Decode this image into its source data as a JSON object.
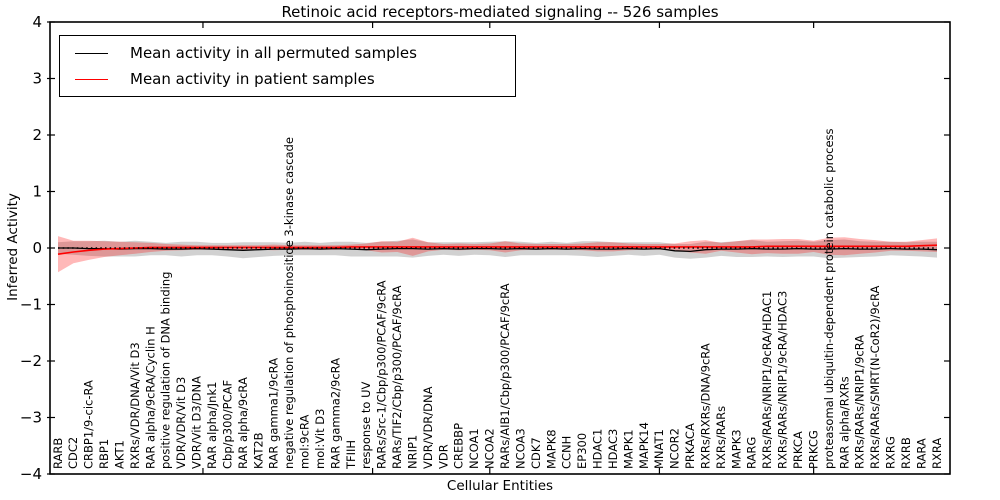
{
  "title": "Retinoic acid receptors-mediated signaling -- 526 samples",
  "legend": {
    "items": [
      {
        "label": "Mean activity in all permuted samples",
        "color": "#000000"
      },
      {
        "label": "Mean activity in patient samples",
        "color": "#ff0000"
      }
    ]
  },
  "chart_data": {
    "type": "line",
    "title": "Retinoic acid receptors-mediated signaling -- 526 samples",
    "xlabel": "Cellular Entities",
    "ylabel": "Inferred Activity",
    "ylim": [
      -4,
      4
    ],
    "yticks": [
      4,
      3,
      2,
      1,
      0,
      -1,
      -2,
      -3,
      -4
    ],
    "ytick_labels": [
      "4",
      "3",
      "2",
      "1",
      "0",
      "−1",
      "−2",
      "−3",
      "−4"
    ],
    "xtick_fractions": [
      9.4,
      20.4,
      28.0,
      39.0,
      49.0
    ],
    "grid": false,
    "legend_position": "upper left",
    "zero_line": {
      "style": "dotted",
      "color": "#000000"
    },
    "categories": [
      "RARB",
      "CDC2",
      "CRBP1/9-cic-RA",
      "RBP1",
      "AKT1",
      "RXRs/VDR/DNA/Vit D3",
      "RAR alpha/9cRA/Cyclin H",
      "positive regulation of DNA binding",
      "VDR/VDR/Vit D3",
      "VDR/Vit D3/DNA",
      "RAR alpha/Jnk1",
      "Cbp/p300/PCAF",
      "RAR alpha/9cRA",
      "KAT2B",
      "RAR gamma1/9cRA",
      "negative regulation of phosphoinositide 3-kinase cascade",
      "mol:9cRA",
      "mol:Vit D3",
      "RAR gamma2/9cRA",
      "TFIIH",
      "response to UV",
      "RARs/Src-1/Cbp/p300/PCAF/9cRA",
      "RARs/TIF2/Cbp/p300/PCAF/9cRA",
      "NRIP1",
      "VDR/VDR/DNA",
      "VDR",
      "CREBBP",
      "NCOA1",
      "NCOA2",
      "RARs/AIB1/Cbp/p300/PCAF/9cRA",
      "NCOA3",
      "CDK7",
      "MAPK8",
      "CCNH",
      "EP300",
      "HDAC1",
      "HDAC3",
      "MAPK1",
      "MAPK14",
      "MNAT1",
      "NCOR2",
      "PRKACA",
      "RXRs/RXRs/DNA/9cRA",
      "RXRs/RARs",
      "MAPK3",
      "RARG",
      "RXRs/RARs/NRIP1/9cRA/HDAC1",
      "RXRs/RARs/NRIP1/9cRA/HDAC3",
      "PRKCA",
      "PRKCG",
      "proteasomal ubiquitin-dependent protein catabolic process",
      "RAR alpha/RXRs",
      "RXRs/RARs/NRIP1/9cRA",
      "RXRs/RARs/SMRT(N-CoR2)/9cRA",
      "RXRG",
      "RXRB",
      "RARA",
      "RXRA"
    ],
    "series": [
      {
        "name": "Mean activity in all permuted samples",
        "color": "#000000",
        "values": [
          0.0,
          0.0,
          -0.01,
          -0.01,
          -0.02,
          -0.01,
          -0.01,
          -0.02,
          -0.02,
          -0.01,
          -0.02,
          -0.03,
          -0.04,
          -0.03,
          -0.02,
          -0.02,
          -0.01,
          -0.02,
          -0.01,
          -0.02,
          -0.03,
          -0.02,
          -0.01,
          -0.01,
          -0.02,
          -0.01,
          -0.02,
          -0.01,
          -0.01,
          -0.02,
          -0.01,
          -0.02,
          -0.01,
          -0.02,
          -0.01,
          -0.02,
          -0.02,
          -0.01,
          -0.02,
          -0.01,
          -0.05,
          -0.06,
          -0.03,
          -0.02,
          -0.02,
          -0.01,
          -0.02,
          -0.02,
          -0.01,
          -0.02,
          -0.02,
          -0.01,
          -0.02,
          -0.02,
          -0.01,
          -0.02,
          -0.02,
          -0.03
        ]
      },
      {
        "name": "Mean activity in patient samples",
        "color": "#ff0000",
        "values": [
          -0.11,
          -0.07,
          -0.04,
          -0.02,
          -0.01,
          0.0,
          0.01,
          0.01,
          0.01,
          0.01,
          0.01,
          0.01,
          0.01,
          0.01,
          0.01,
          0.01,
          0.01,
          0.01,
          0.01,
          0.02,
          0.02,
          0.02,
          0.02,
          0.02,
          0.02,
          0.02,
          0.02,
          0.02,
          0.02,
          0.02,
          0.02,
          0.02,
          0.02,
          0.02,
          0.02,
          0.02,
          0.02,
          0.02,
          0.02,
          0.02,
          0.02,
          0.02,
          0.02,
          0.02,
          0.02,
          0.02,
          0.03,
          0.03,
          0.03,
          0.03,
          0.03,
          0.03,
          0.03,
          0.03,
          0.03,
          0.03,
          0.04,
          0.05
        ]
      }
    ],
    "bands": [
      {
        "name": "permuted-std-band",
        "series": 0,
        "color": "#999999",
        "opacity": 0.45,
        "half_widths": [
          0.1,
          0.12,
          0.13,
          0.14,
          0.13,
          0.14,
          0.12,
          0.11,
          0.13,
          0.12,
          0.11,
          0.12,
          0.14,
          0.13,
          0.12,
          0.11,
          0.12,
          0.11,
          0.12,
          0.13,
          0.12,
          0.13,
          0.14,
          0.16,
          0.12,
          0.11,
          0.12,
          0.11,
          0.12,
          0.14,
          0.12,
          0.11,
          0.12,
          0.11,
          0.13,
          0.14,
          0.12,
          0.11,
          0.12,
          0.11,
          0.12,
          0.13,
          0.14,
          0.12,
          0.14,
          0.15,
          0.13,
          0.14,
          0.14,
          0.13,
          0.16,
          0.16,
          0.14,
          0.13,
          0.12,
          0.12,
          0.13,
          0.14
        ]
      },
      {
        "name": "patient-std-band",
        "series": 1,
        "color": "#ff0000",
        "opacity": 0.28,
        "half_widths": [
          0.32,
          0.2,
          0.17,
          0.14,
          0.12,
          0.1,
          0.08,
          0.06,
          0.05,
          0.04,
          0.04,
          0.04,
          0.04,
          0.04,
          0.05,
          0.04,
          0.04,
          0.04,
          0.04,
          0.04,
          0.06,
          0.1,
          0.09,
          0.16,
          0.08,
          0.05,
          0.06,
          0.05,
          0.06,
          0.1,
          0.06,
          0.05,
          0.05,
          0.05,
          0.06,
          0.08,
          0.08,
          0.06,
          0.05,
          0.05,
          0.06,
          0.1,
          0.12,
          0.07,
          0.1,
          0.13,
          0.12,
          0.13,
          0.13,
          0.1,
          0.15,
          0.16,
          0.13,
          0.11,
          0.08,
          0.08,
          0.1,
          0.12
        ]
      }
    ]
  }
}
